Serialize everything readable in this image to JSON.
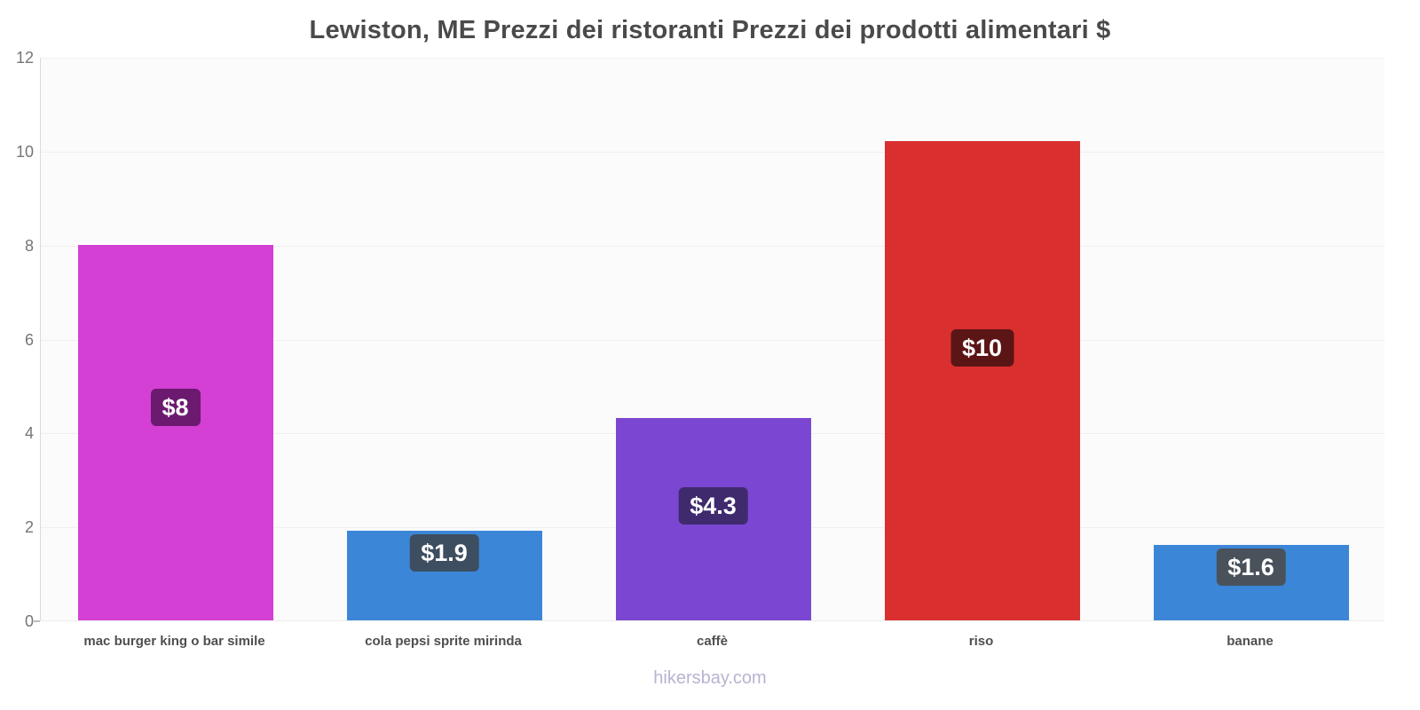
{
  "chart_data": {
    "type": "bar",
    "title": "Lewiston, ME Prezzi dei ristoranti Prezzi dei prodotti alimentari $",
    "categories": [
      "mac burger king o bar simile",
      "cola pepsi sprite mirinda",
      "caffè",
      "riso",
      "banane"
    ],
    "values": [
      8,
      1.9,
      4.3,
      10.2,
      1.6
    ],
    "value_labels": [
      "$8",
      "$1.9",
      "$4.3",
      "$10",
      "$1.6"
    ],
    "bar_colors": [
      "#d43fd4",
      "#3c86d8",
      "#7b46d1",
      "#da2f2f",
      "#3c86d8"
    ],
    "badge_colors": [
      "#6b1a70",
      "#3d4e60",
      "#3f2a6e",
      "#5c1515",
      "#49525b"
    ],
    "xlabel": "",
    "ylabel": "",
    "ylim": [
      0,
      12
    ],
    "yticks": [
      0,
      2,
      4,
      6,
      8,
      10,
      12
    ],
    "grid": true,
    "legend": "none",
    "currency": "$"
  },
  "footer": {
    "watermark": "hikersbay.com"
  }
}
